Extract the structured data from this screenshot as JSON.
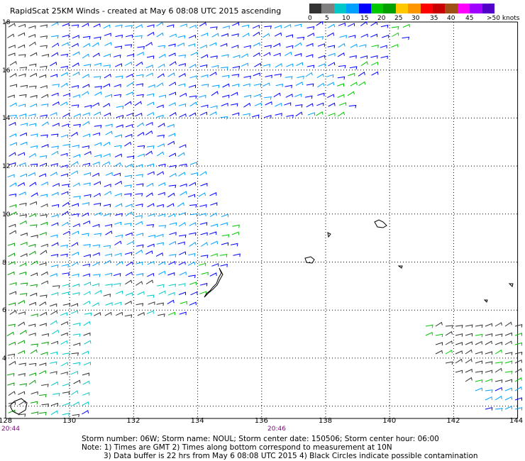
{
  "title": "RapidScat 25KM Winds - created at May  6 08:08 UTC 2015 ascending",
  "legend": {
    "colors": [
      "#333333",
      "#7f7f7f",
      "#00c8c8",
      "#00a0ff",
      "#0000ff",
      "#00c800",
      "#00a000",
      "#ffc800",
      "#ff9600",
      "#ff0000",
      "#c80000",
      "#a05014",
      "#ff00ff",
      "#a000ff",
      "#5000c8"
    ],
    "labels": [
      "0",
      "5",
      "10",
      "15",
      "20",
      "25",
      "30",
      "35",
      "40",
      "45",
      ">50 knots"
    ]
  },
  "axes": {
    "lat_labels": [
      "18",
      "16",
      "14",
      "12",
      "10",
      "8",
      "6",
      "4"
    ],
    "lon_labels": [
      "128",
      "130",
      "132",
      "134",
      "136",
      "138",
      "140",
      "142",
      "144"
    ],
    "time_labels": [
      "20:44",
      "20:46"
    ]
  },
  "footer": {
    "line1": "Storm number: 06W;  Storm name: NOUL;  Storm center date: 150506;  Storm center hour: 06:00",
    "line2": "Note: 1) Times are GMT  2) Times along bottom correspond to measurement at 10N",
    "line3": "3) Data buffer is 22 hrs from May  6 08:08 UTC 2015   4) Black Circles indicate possible contamination"
  }
}
